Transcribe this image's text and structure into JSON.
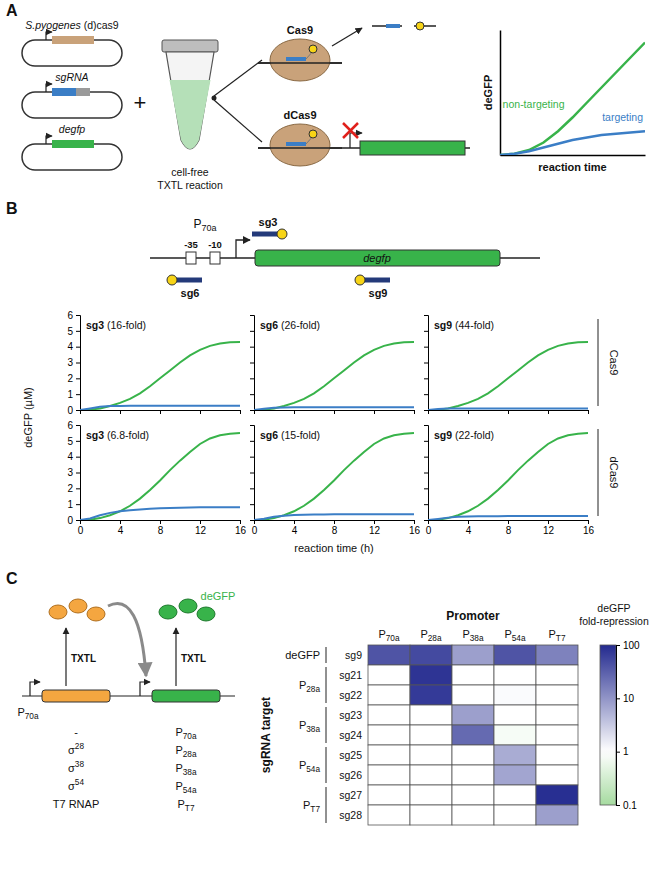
{
  "panel_labels": [
    "A",
    "B",
    "C"
  ],
  "panel_a": {
    "plasmids": [
      "S.pyogenes (d)cas9",
      "sgRNA",
      "degfp"
    ],
    "plus": "+",
    "reaction_lines": [
      "cell-free",
      "TXTL reaction"
    ],
    "proteins": [
      "Cas9",
      "dCas9"
    ]
  },
  "panel_b": {
    "promoter": "P70a",
    "guides": [
      "sg3",
      "sg6",
      "sg9"
    ],
    "boxes": [
      "-35",
      "-10"
    ],
    "gene": "degfp",
    "y_label": "deGFP (µM)",
    "x_label": "reaction time (h)",
    "row_labels": [
      "Cas9",
      "dCas9"
    ]
  },
  "panel_c": {
    "regulator_promoter": "P70a",
    "txtl": [
      "TXTL",
      "TXTL"
    ],
    "reporter": "deGFP",
    "regulators": [
      "-",
      "σ28",
      "σ38",
      "σ54",
      "T7 RNAP"
    ],
    "reporter_promoters": [
      "P70a",
      "P28a",
      "P38a",
      "P54a",
      "PT7"
    ]
  },
  "chart_data": [
    {
      "type": "line",
      "x_label": "reaction time",
      "y_label": "deGFP",
      "tick_labels": false,
      "xlim": [
        0,
        10
      ],
      "ylim": [
        0,
        10
      ],
      "x": [
        0,
        1,
        2,
        3,
        4,
        5,
        6,
        7,
        8,
        9,
        10
      ],
      "series": [
        {
          "name": "non-targeting",
          "color": "#38b34a",
          "values": [
            0,
            0.1,
            0.4,
            1.0,
            1.9,
            3.0,
            4.2,
            5.4,
            6.6,
            7.8,
            9.0
          ]
        },
        {
          "name": "targeting",
          "color": "#3b7ec6",
          "values": [
            0,
            0.1,
            0.3,
            0.6,
            0.9,
            1.2,
            1.4,
            1.6,
            1.7,
            1.8,
            1.9
          ]
        }
      ]
    },
    {
      "type": "line",
      "title": "sg3 (16-fold)",
      "tick_labels": "y",
      "xlim": [
        0,
        16
      ],
      "ylim": [
        0,
        6
      ],
      "xticks": [
        0,
        4,
        8,
        12,
        16
      ],
      "yticks": [
        0,
        1,
        2,
        3,
        4,
        5,
        6
      ],
      "x": [
        0,
        1,
        2,
        3,
        4,
        5,
        6,
        7,
        8,
        9,
        10,
        11,
        12,
        13,
        14,
        15,
        16
      ],
      "series": [
        {
          "color": "#38b34a",
          "values": [
            0,
            0.02,
            0.1,
            0.25,
            0.45,
            0.7,
            1.05,
            1.5,
            2.0,
            2.5,
            3.0,
            3.45,
            3.8,
            4.05,
            4.2,
            4.28,
            4.3
          ]
        },
        {
          "color": "#3b7ec6",
          "values": [
            0,
            0.1,
            0.2,
            0.25,
            0.26,
            0.27,
            0.27,
            0.27,
            0.27,
            0.27,
            0.27,
            0.27,
            0.27,
            0.27,
            0.27,
            0.27,
            0.27
          ]
        }
      ]
    },
    {
      "type": "line",
      "title": "sg6 (26-fold)",
      "tick_labels": false,
      "xlim": [
        0,
        16
      ],
      "ylim": [
        0,
        6
      ],
      "xticks": [
        0,
        4,
        8,
        12,
        16
      ],
      "yticks": [
        0,
        1,
        2,
        3,
        4,
        5,
        6
      ],
      "x": [
        0,
        1,
        2,
        3,
        4,
        5,
        6,
        7,
        8,
        9,
        10,
        11,
        12,
        13,
        14,
        15,
        16
      ],
      "series": [
        {
          "color": "#38b34a",
          "values": [
            0,
            0.02,
            0.1,
            0.25,
            0.45,
            0.7,
            1.05,
            1.5,
            2.0,
            2.5,
            3.0,
            3.45,
            3.8,
            4.05,
            4.2,
            4.28,
            4.3
          ]
        },
        {
          "color": "#3b7ec6",
          "values": [
            0,
            0.08,
            0.14,
            0.16,
            0.17,
            0.17,
            0.17,
            0.17,
            0.17,
            0.17,
            0.17,
            0.17,
            0.17,
            0.17,
            0.17,
            0.17,
            0.17
          ]
        }
      ]
    },
    {
      "type": "line",
      "title": "sg9 (44-fold)",
      "tick_labels": false,
      "xlim": [
        0,
        16
      ],
      "ylim": [
        0,
        6
      ],
      "xticks": [
        0,
        4,
        8,
        12,
        16
      ],
      "yticks": [
        0,
        1,
        2,
        3,
        4,
        5,
        6
      ],
      "x": [
        0,
        1,
        2,
        3,
        4,
        5,
        6,
        7,
        8,
        9,
        10,
        11,
        12,
        13,
        14,
        15,
        16
      ],
      "series": [
        {
          "color": "#38b34a",
          "values": [
            0,
            0.02,
            0.1,
            0.25,
            0.45,
            0.7,
            1.05,
            1.5,
            2.0,
            2.5,
            3.0,
            3.45,
            3.8,
            4.05,
            4.2,
            4.28,
            4.3
          ]
        },
        {
          "color": "#3b7ec6",
          "values": [
            0,
            0.06,
            0.09,
            0.1,
            0.1,
            0.1,
            0.1,
            0.1,
            0.1,
            0.1,
            0.1,
            0.1,
            0.1,
            0.1,
            0.1,
            0.1,
            0.1
          ]
        }
      ]
    },
    {
      "type": "line",
      "title": "sg3 (6.8-fold)",
      "tick_labels": true,
      "xlim": [
        0,
        16
      ],
      "ylim": [
        0,
        6
      ],
      "xticks": [
        0,
        4,
        8,
        12,
        16
      ],
      "yticks": [
        0,
        1,
        2,
        3,
        4,
        5,
        6
      ],
      "x": [
        0,
        1,
        2,
        3,
        4,
        5,
        6,
        7,
        8,
        9,
        10,
        11,
        12,
        13,
        14,
        15,
        16
      ],
      "series": [
        {
          "color": "#38b34a",
          "values": [
            0,
            0.02,
            0.12,
            0.3,
            0.55,
            0.9,
            1.35,
            1.9,
            2.5,
            3.15,
            3.75,
            4.3,
            4.8,
            5.15,
            5.35,
            5.45,
            5.5
          ]
        },
        {
          "color": "#3b7ec6",
          "values": [
            0,
            0.1,
            0.3,
            0.45,
            0.55,
            0.62,
            0.67,
            0.71,
            0.74,
            0.76,
            0.78,
            0.79,
            0.8,
            0.8,
            0.8,
            0.8,
            0.8
          ]
        }
      ]
    },
    {
      "type": "line",
      "title": "sg6 (15-fold)",
      "tick_labels": "x",
      "xlim": [
        0,
        16
      ],
      "ylim": [
        0,
        6
      ],
      "xticks": [
        0,
        4,
        8,
        12,
        16
      ],
      "yticks": [
        0,
        1,
        2,
        3,
        4,
        5,
        6
      ],
      "x": [
        0,
        1,
        2,
        3,
        4,
        5,
        6,
        7,
        8,
        9,
        10,
        11,
        12,
        13,
        14,
        15,
        16
      ],
      "series": [
        {
          "color": "#38b34a",
          "values": [
            0,
            0.02,
            0.12,
            0.3,
            0.55,
            0.9,
            1.35,
            1.9,
            2.5,
            3.15,
            3.75,
            4.3,
            4.8,
            5.15,
            5.35,
            5.45,
            5.5
          ]
        },
        {
          "color": "#3b7ec6",
          "values": [
            0,
            0.08,
            0.2,
            0.27,
            0.31,
            0.33,
            0.34,
            0.35,
            0.36,
            0.36,
            0.37,
            0.37,
            0.37,
            0.37,
            0.37,
            0.37,
            0.37
          ]
        }
      ]
    },
    {
      "type": "line",
      "title": "sg9 (22-fold)",
      "tick_labels": "x",
      "xlim": [
        0,
        16
      ],
      "ylim": [
        0,
        6
      ],
      "xticks": [
        0,
        4,
        8,
        12,
        16
      ],
      "yticks": [
        0,
        1,
        2,
        3,
        4,
        5,
        6
      ],
      "x": [
        0,
        1,
        2,
        3,
        4,
        5,
        6,
        7,
        8,
        9,
        10,
        11,
        12,
        13,
        14,
        15,
        16
      ],
      "series": [
        {
          "color": "#38b34a",
          "values": [
            0,
            0.02,
            0.12,
            0.3,
            0.55,
            0.9,
            1.35,
            1.9,
            2.5,
            3.15,
            3.75,
            4.3,
            4.8,
            5.15,
            5.35,
            5.45,
            5.5
          ]
        },
        {
          "color": "#3b7ec6",
          "values": [
            0,
            0.07,
            0.15,
            0.2,
            0.22,
            0.23,
            0.24,
            0.24,
            0.25,
            0.25,
            0.25,
            0.25,
            0.25,
            0.25,
            0.25,
            0.25,
            0.25
          ]
        }
      ]
    },
    {
      "type": "heatmap",
      "x_label": "Promoter",
      "y_label": "sgRNA target",
      "x": [
        "P70a",
        "P28a",
        "P38a",
        "P54a",
        "PT7"
      ],
      "row_groups": [
        {
          "label": "deGFP",
          "rows": [
            "sg9"
          ]
        },
        {
          "label": "P28a",
          "rows": [
            "sg21",
            "sg22"
          ]
        },
        {
          "label": "P38a",
          "rows": [
            "sg23",
            "sg24"
          ]
        },
        {
          "label": "P54a",
          "rows": [
            "sg25",
            "sg26"
          ]
        },
        {
          "label": "PT7",
          "rows": [
            "sg27",
            "sg28"
          ]
        }
      ],
      "values": [
        [
          40,
          50,
          8,
          40,
          15
        ],
        [
          1,
          80,
          1,
          1,
          1
        ],
        [
          1,
          70,
          1,
          1.1,
          1
        ],
        [
          1,
          1,
          8,
          1,
          1
        ],
        [
          1,
          1,
          25,
          0.8,
          1
        ],
        [
          1,
          1,
          1,
          6,
          1
        ],
        [
          1,
          1,
          1,
          7,
          1
        ],
        [
          1,
          1,
          1,
          1,
          90
        ],
        [
          1,
          1,
          1,
          1,
          8
        ]
      ],
      "colorbar": {
        "title": [
          "deGFP",
          "fold-repression"
        ],
        "log": true,
        "lim": [
          0.1,
          100
        ],
        "center": 1,
        "ticks": [
          0.1,
          1,
          10,
          100
        ]
      }
    }
  ]
}
